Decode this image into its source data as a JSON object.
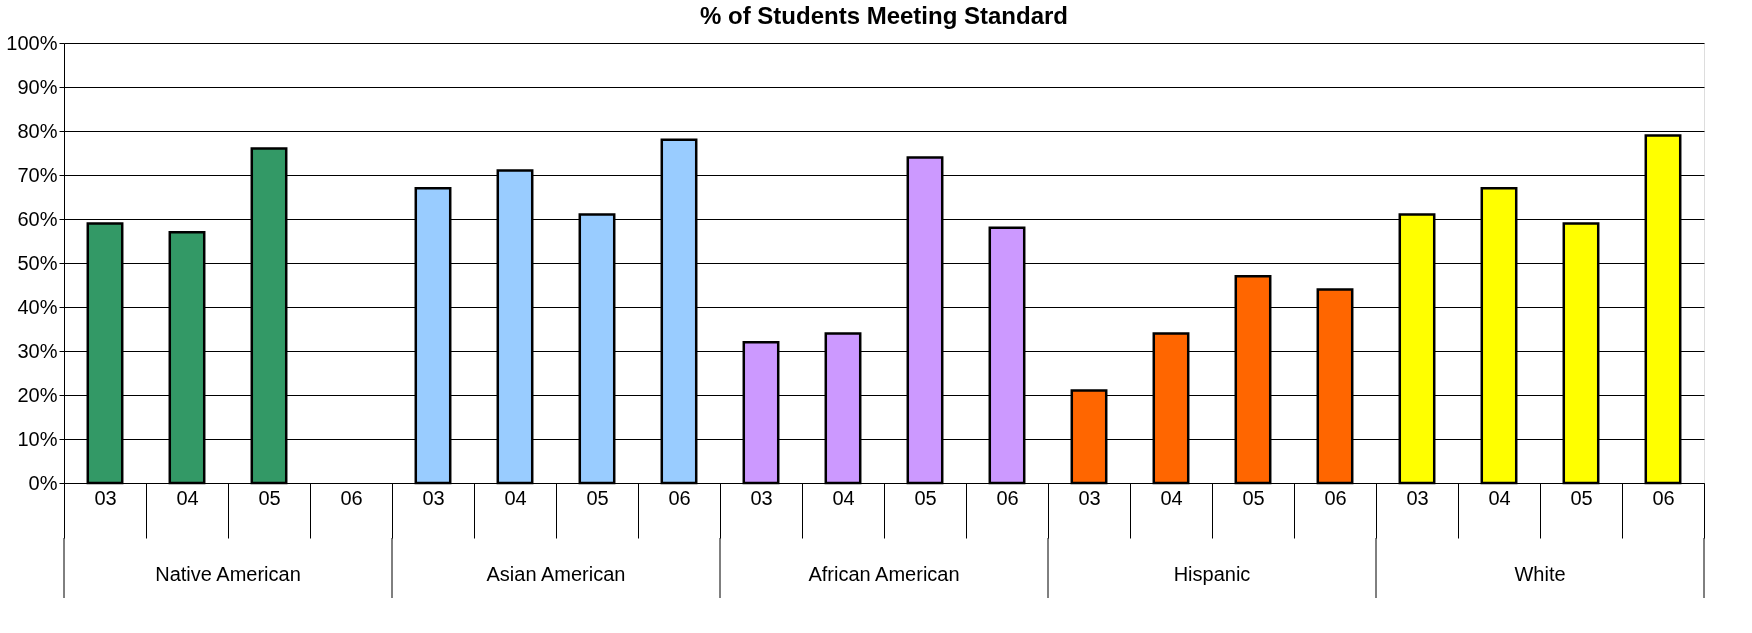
{
  "chart_data": {
    "type": "bar",
    "title": "% of Students Meeting Standard",
    "categories": [
      "03",
      "04",
      "05",
      "06",
      "03",
      "04",
      "05",
      "06",
      "03",
      "04",
      "05",
      "06",
      "03",
      "04",
      "05",
      "06",
      "03",
      "04",
      "05",
      "06"
    ],
    "values": [
      59,
      57,
      76,
      null,
      67,
      71,
      61,
      78,
      32,
      34,
      74,
      58,
      21,
      34,
      47,
      44,
      61,
      67,
      59,
      79
    ],
    "colors": [
      "#339966",
      "#339966",
      "#339966",
      "#339966",
      "#99ccff",
      "#99ccff",
      "#99ccff",
      "#99ccff",
      "#cc99ff",
      "#cc99ff",
      "#cc99ff",
      "#cc99ff",
      "#ff6600",
      "#ff6600",
      "#ff6600",
      "#ff6600",
      "#ffff00",
      "#ffff00",
      "#ffff00",
      "#ffff00"
    ],
    "annotations": [
      "Native American",
      "Asian American",
      "African American",
      "Hispanic",
      "White"
    ],
    "ylim": [
      0,
      100
    ],
    "yticks": [
      {
        "value": 0,
        "label": "0%"
      },
      {
        "value": 10,
        "label": "10%"
      },
      {
        "value": 20,
        "label": "20%"
      },
      {
        "value": 30,
        "label": "30%"
      },
      {
        "value": 40,
        "label": "40%"
      },
      {
        "value": 50,
        "label": "50%"
      },
      {
        "value": 60,
        "label": "60%"
      },
      {
        "value": 70,
        "label": "70%"
      },
      {
        "value": 80,
        "label": "80%"
      },
      {
        "value": 90,
        "label": "90%"
      },
      {
        "value": 100,
        "label": "100%"
      }
    ],
    "grid": "y"
  }
}
